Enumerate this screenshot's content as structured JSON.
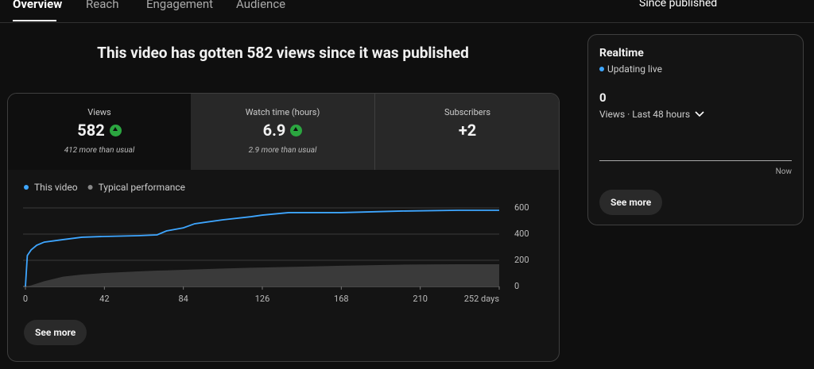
{
  "tabs": [
    "Overview",
    "Reach",
    "Engagement",
    "Audience"
  ],
  "period": "Since published",
  "headline": "This video has gotten 582 views since it was published",
  "metrics": [
    {
      "label": "Views",
      "value": "582",
      "note": "412 more than usual"
    },
    {
      "label": "Watch time (hours)",
      "value": "6.9",
      "note": "2.9 more than usual"
    },
    {
      "label": "Subscribers",
      "value": "+2"
    }
  ],
  "chart": {
    "type": "line",
    "x": [
      0,
      1,
      3,
      6,
      10,
      20,
      30,
      42,
      60,
      70,
      75,
      84,
      90,
      105,
      120,
      126,
      140,
      168,
      200,
      230,
      252
    ],
    "series": [
      {
        "name": "This video",
        "color": "#3ea6ff",
        "values": [
          0,
          236,
          279,
          315,
          339,
          358,
          376,
          382,
          388,
          394,
          424,
          448,
          479,
          509,
          533,
          545,
          564,
          564,
          576,
          582,
          582
        ]
      },
      {
        "name": "Typical performance",
        "color": "#3a3a3a",
        "type": "area",
        "values": [
          0,
          2,
          8,
          22,
          40,
          75,
          91,
          103,
          115,
          121,
          123,
          127,
          130,
          137,
          143,
          145,
          149,
          158,
          167,
          170,
          170
        ]
      }
    ],
    "xlim": [
      0,
      252
    ],
    "xticks": [
      0,
      42,
      84,
      126,
      168,
      210,
      {
        "value": 252,
        "label": "252 days"
      }
    ],
    "ylim": [
      0,
      600
    ],
    "yticks": [
      0,
      200,
      400,
      600
    ],
    "grid": true
  },
  "chart_button": "See more",
  "realtime": {
    "title": "Realtime",
    "status": "Updating live",
    "value": "0",
    "caption": "Views · Last 48 hours",
    "axis_label": "Now",
    "button": "See more"
  }
}
